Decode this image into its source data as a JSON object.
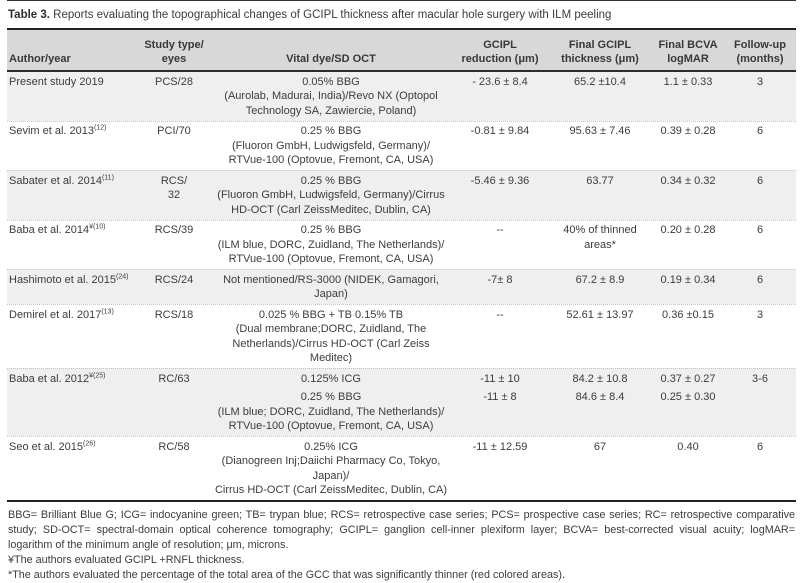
{
  "caption": {
    "label": "Table 3.",
    "text": "Reports evaluating the topographical changes of GCIPL thickness after macular hole surgery with ILM peeling"
  },
  "colors": {
    "header_bg": "#d8d8d8",
    "shade_row_bg": "#efefef",
    "rule": "#222222",
    "text": "#3c3c3c"
  },
  "table": {
    "columns": [
      {
        "key": "author",
        "lines": [
          "Author/year"
        ]
      },
      {
        "key": "study",
        "lines": [
          "Study type/",
          "eyes"
        ]
      },
      {
        "key": "dye",
        "lines": [
          "Vital dye/SD OCT"
        ]
      },
      {
        "key": "red",
        "lines": [
          "GCIPL",
          "reduction (μm)"
        ]
      },
      {
        "key": "thick",
        "lines": [
          "Final GCIPL",
          "thickness (μm)"
        ]
      },
      {
        "key": "bcva",
        "lines": [
          "Final BCVA",
          "logMAR"
        ]
      },
      {
        "key": "follow",
        "lines": [
          "Follow-up",
          "(months)"
        ]
      }
    ],
    "rows": [
      {
        "author": "Present study 2019",
        "author_sup": "",
        "study_lines": [
          "PCS/28"
        ],
        "entries": [
          {
            "dye_lines": [
              "0.05% BBG",
              "(Aurolab, Madurai, India)/Revo NX (Optopol",
              "Technology SA, Zawiercie, Poland)"
            ],
            "reduction": "- 23.6 ± 8.4",
            "thickness": "65.2 ±10.4",
            "bcva": "1.1 ± 0.33"
          }
        ],
        "followup": "3",
        "shade": true
      },
      {
        "author": "Sevim et al. 2013",
        "author_sup": "(12)",
        "study_lines": [
          "PCI/70"
        ],
        "entries": [
          {
            "dye_lines": [
              "0.25 % BBG",
              "(Fluoron GmbH, Ludwigsfeld, Germany)/",
              "RTVue-100 (Optovue, Fremont, CA, USA)"
            ],
            "reduction": "-0.81 ± 9.84",
            "thickness": "95.63 ± 7.46",
            "bcva": "0.39 ± 0.28"
          }
        ],
        "followup": "6",
        "shade": false
      },
      {
        "author": "Sabater et al. 2014",
        "author_sup": "(11)",
        "study_lines": [
          "RCS/",
          "32"
        ],
        "entries": [
          {
            "dye_lines": [
              "0.25 % BBG",
              "(Fluoron GmbH, Ludwigsfeld, Germany)/Cirrus",
              "HD-OCT (Carl ZeissMeditec, Dublin, CA)"
            ],
            "reduction": "-5.46 ± 9.36",
            "thickness": "63.77",
            "bcva": "0.34 ± 0.32"
          }
        ],
        "followup": "6",
        "shade": true
      },
      {
        "author": "Baba et al. 2014",
        "author_sup": "¥(10)",
        "study_lines": [
          "RCS/39"
        ],
        "entries": [
          {
            "dye_lines": [
              "0.25 % BBG",
              "(ILM blue, DORC, Zuidland, The Netherlands)/",
              "RTVue-100 (Optovue, Fremont, CA, USA)"
            ],
            "reduction": "--",
            "thickness": "40% of thinned areas*",
            "bcva": "0.20 ± 0.28"
          }
        ],
        "followup": "6",
        "shade": false
      },
      {
        "author": "Hashimoto et al. 2015",
        "author_sup": "(24)",
        "study_lines": [
          "RCS/24"
        ],
        "entries": [
          {
            "dye_lines": [
              "Not mentioned/RS-3000 (NIDEK, Gamagori, Japan)"
            ],
            "reduction": "-7± 8",
            "thickness": "67.2 ± 8.9",
            "bcva": "0.19 ± 0.34"
          }
        ],
        "followup": "6",
        "shade": true
      },
      {
        "author": "Demirel et al. 2017",
        "author_sup": "(13)",
        "study_lines": [
          "RCS/18"
        ],
        "entries": [
          {
            "dye_lines": [
              "0.025 % BBG + TB 0.15% TB",
              "(Dual membrane;DORC, Zuidland, The",
              "Netherlands)/Cirrus HD-OCT (Carl Zeiss Meditec)"
            ],
            "reduction": "--",
            "thickness": "52.61 ± 13.97",
            "bcva": "0.36 ±0.15"
          }
        ],
        "followup": "3",
        "shade": false
      },
      {
        "author": "Baba et al. 2012",
        "author_sup": "¥(25)",
        "study_lines": [
          "RC/63"
        ],
        "entries": [
          {
            "dye_lines": [
              "0.125% ICG"
            ],
            "reduction": "-11 ± 10",
            "thickness": "84.2 ± 10.8",
            "bcva": "0.37 ± 0.27"
          },
          {
            "dye_lines": [
              "0.25 % BBG",
              "(ILM blue; DORC, Zuidland, The Netherlands)/",
              "RTVue-100 (Optovue, Fremont, CA, USA)"
            ],
            "reduction": "-11 ± 8",
            "thickness": "84.6 ± 8.4",
            "bcva": "0.25 ± 0.30"
          }
        ],
        "followup": "3-6",
        "shade": true
      },
      {
        "author": "Seo et al. 2015",
        "author_sup": "(26)",
        "study_lines": [
          "RC/58"
        ],
        "entries": [
          {
            "dye_lines": [
              "0.25% ICG",
              "(Dianogreen Inj;Daiichi Pharmacy Co, Tokyo, Japan)/",
              "Cirrus HD-OCT (Carl ZeissMeditec, Dublin, CA)"
            ],
            "reduction": "-11 ± 12.59",
            "thickness": "67",
            "bcva": "0.40"
          }
        ],
        "followup": "6",
        "shade": false
      }
    ]
  },
  "footnotes": [
    "BBG= Brilliant Blue G; ICG= indocyanine green; TB= trypan blue; RCS= retrospective case series; PCS= prospective case series; RC= retrospective comparative study; SD-OCT= spectral-domain optical coherence tomography; GCIPL= ganglion cell-inner plexiform layer; BCVA= best-corrected visual acuity; logMAR= logarithm of the minimum angle of resolution; μm, microns.",
    "¥The authors evaluated GCIPL +RNFL thickness.",
    "*The authors evaluated the percentage of the total area of the GCC that was significantly thinner (red colored areas)."
  ]
}
